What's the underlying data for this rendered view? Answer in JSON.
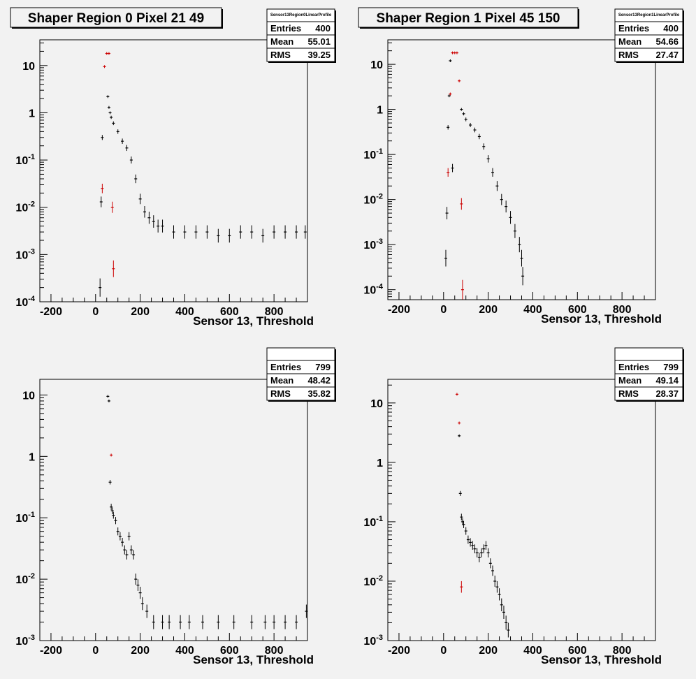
{
  "chart_data": [
    {
      "type": "scatter",
      "title": "Shaper Region 0 Pixel 21 49",
      "xlabel": "Sensor 13, Threshold",
      "ylabel": "",
      "xlim": [
        -250,
        950
      ],
      "ylim": [
        0.0001,
        35
      ],
      "yscale": "log",
      "x_ticks": [
        -200,
        0,
        200,
        400,
        600,
        800
      ],
      "x_tick_labels": [
        "-200",
        "0",
        "200",
        "400",
        "600",
        "800"
      ],
      "y_ticks": [
        0.0001,
        0.001,
        0.01,
        0.1,
        1,
        10
      ],
      "stats": {
        "name": "Sensor13Region0LinearProfile",
        "entries_label": "Entries",
        "entries": "400",
        "mean_label": "Mean",
        "mean": "55.01",
        "rms_label": "RMS",
        "rms": "39.25"
      },
      "series": [
        {
          "color": "#000000",
          "x": [
            20,
            25,
            30,
            55,
            60,
            65,
            70,
            80,
            100,
            120,
            140,
            160,
            180,
            200,
            220,
            240,
            260,
            280,
            300,
            350,
            400,
            450,
            500,
            550,
            600,
            650,
            700,
            750,
            800,
            850,
            900,
            940
          ],
          "y": [
            0.0002,
            0.013,
            0.3,
            2.2,
            1.3,
            1.0,
            0.8,
            0.6,
            0.4,
            0.25,
            0.18,
            0.1,
            0.04,
            0.015,
            0.008,
            0.006,
            0.005,
            0.004,
            0.004,
            0.003,
            0.003,
            0.003,
            0.003,
            0.0025,
            0.0025,
            0.003,
            0.003,
            0.0025,
            0.003,
            0.003,
            0.003,
            0.003
          ]
        },
        {
          "color": "#cc0000",
          "x": [
            30,
            40,
            50,
            60,
            75,
            80
          ],
          "y": [
            0.025,
            9.5,
            18,
            18,
            0.01,
            0.0005
          ]
        }
      ]
    },
    {
      "type": "scatter",
      "title": "Shaper Region 1 Pixel 45 150",
      "xlabel": "Sensor 13, Threshold",
      "ylabel": "",
      "xlim": [
        -250,
        950
      ],
      "ylim": [
        6e-05,
        35
      ],
      "yscale": "log",
      "x_ticks": [
        -200,
        0,
        200,
        400,
        600,
        800
      ],
      "x_tick_labels": [
        "-200",
        "0",
        "200",
        "400",
        "600",
        "800"
      ],
      "y_ticks": [
        0.0001,
        0.001,
        0.01,
        0.1,
        1,
        10
      ],
      "stats": {
        "name": "Sensor13Region1LinearProfile",
        "entries_label": "Entries",
        "entries": "400",
        "mean_label": "Mean",
        "mean": "54.66",
        "rms_label": "RMS",
        "rms": "27.47"
      },
      "series": [
        {
          "color": "#000000",
          "x": [
            10,
            15,
            20,
            25,
            30,
            40,
            80,
            90,
            100,
            120,
            140,
            160,
            180,
            200,
            220,
            240,
            260,
            280,
            300,
            320,
            340,
            350,
            355
          ],
          "y": [
            0.0005,
            0.005,
            0.4,
            2.0,
            12,
            0.05,
            1.0,
            0.8,
            0.6,
            0.45,
            0.35,
            0.25,
            0.15,
            0.08,
            0.04,
            0.02,
            0.01,
            0.007,
            0.004,
            0.002,
            0.001,
            0.0005,
            0.0002
          ]
        },
        {
          "color": "#cc0000",
          "x": [
            20,
            30,
            40,
            50,
            60,
            70,
            80,
            85
          ],
          "y": [
            0.04,
            2.2,
            18,
            18,
            18,
            4.3,
            0.008,
            0.0001
          ]
        }
      ]
    },
    {
      "type": "scatter",
      "title": "",
      "xlabel": "Sensor 13, Threshold",
      "ylabel": "",
      "xlim": [
        -250,
        950
      ],
      "ylim": [
        0.001,
        18
      ],
      "yscale": "log",
      "x_ticks": [
        -200,
        0,
        200,
        400,
        600,
        800
      ],
      "x_tick_labels": [
        "-200",
        "0",
        "200",
        "400",
        "600",
        "800"
      ],
      "y_ticks": [
        0.001,
        0.01,
        0.1,
        1,
        10
      ],
      "stats": {
        "name": "",
        "entries_label": "Entries",
        "entries": "799",
        "mean_label": "Mean",
        "mean": "48.42",
        "rms_label": "RMS",
        "rms": "35.82"
      },
      "series": [
        {
          "color": "#000000",
          "x": [
            55,
            60,
            65,
            70,
            75,
            80,
            90,
            100,
            110,
            120,
            130,
            140,
            150,
            160,
            170,
            180,
            190,
            200,
            210,
            230,
            260,
            300,
            330,
            380,
            420,
            480,
            550,
            620,
            700,
            760,
            800,
            850,
            900,
            945
          ],
          "y": [
            9.5,
            8.0,
            0.38,
            0.15,
            0.13,
            0.11,
            0.09,
            0.06,
            0.05,
            0.04,
            0.03,
            0.025,
            0.05,
            0.03,
            0.025,
            0.01,
            0.008,
            0.006,
            0.004,
            0.003,
            0.002,
            0.002,
            0.002,
            0.002,
            0.002,
            0.002,
            0.002,
            0.002,
            0.002,
            0.002,
            0.002,
            0.002,
            0.002,
            0.003
          ]
        },
        {
          "color": "#cc0000",
          "x": [
            70
          ],
          "y": [
            1.05
          ]
        }
      ]
    },
    {
      "type": "scatter",
      "title": "",
      "xlabel": "Sensor 13, Threshold",
      "ylabel": "",
      "xlim": [
        -250,
        950
      ],
      "ylim": [
        0.001,
        25
      ],
      "yscale": "log",
      "x_ticks": [
        -200,
        0,
        200,
        400,
        600,
        800
      ],
      "x_tick_labels": [
        "-200",
        "0",
        "200",
        "400",
        "600",
        "800"
      ],
      "y_ticks": [
        0.001,
        0.01,
        0.1,
        1,
        10
      ],
      "stats": {
        "name": "",
        "entries_label": "Entries",
        "entries": "799",
        "mean_label": "Mean",
        "mean": "49.14",
        "rms_label": "RMS",
        "rms": "28.37"
      },
      "series": [
        {
          "color": "#000000",
          "x": [
            70,
            75,
            80,
            85,
            90,
            100,
            110,
            120,
            130,
            140,
            150,
            160,
            170,
            180,
            190,
            200,
            210,
            220,
            230,
            240,
            250,
            260,
            270,
            280,
            290
          ],
          "y": [
            2.8,
            0.3,
            0.12,
            0.1,
            0.09,
            0.07,
            0.05,
            0.045,
            0.04,
            0.035,
            0.03,
            0.025,
            0.03,
            0.035,
            0.04,
            0.03,
            0.02,
            0.015,
            0.01,
            0.008,
            0.006,
            0.004,
            0.003,
            0.002,
            0.0015
          ]
        },
        {
          "color": "#cc0000",
          "x": [
            60,
            70,
            80
          ],
          "y": [
            14,
            4.6,
            0.008
          ]
        }
      ]
    }
  ]
}
